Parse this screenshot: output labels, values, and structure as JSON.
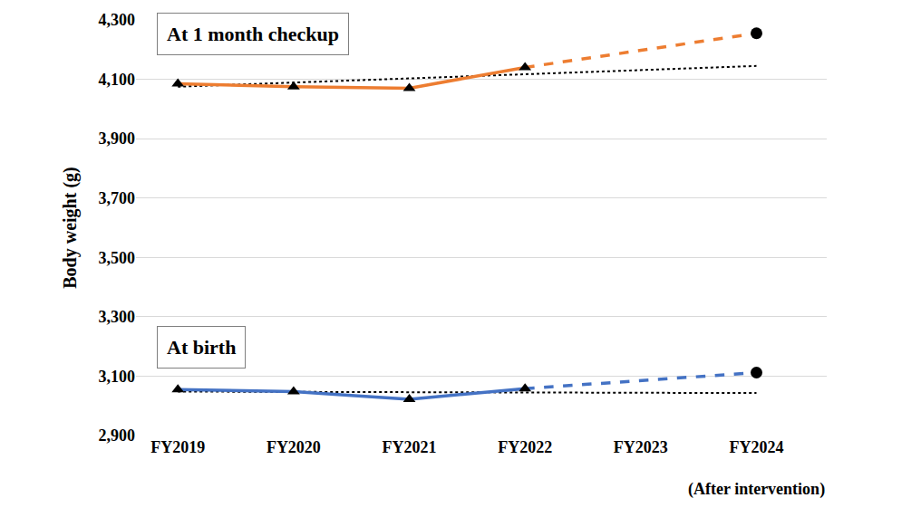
{
  "chart_data": {
    "type": "line",
    "y_label": "Body weight (g)",
    "categories": [
      "FY2019",
      "FY2020",
      "FY2021",
      "FY2022",
      "FY2023",
      "FY2024"
    ],
    "annotations": [
      {
        "text": "At 1 month checkup"
      },
      {
        "text": "At birth"
      },
      {
        "text": "(After intervention)",
        "x": "FY2024"
      }
    ],
    "series": [
      {
        "color": "#000000",
        "line_style": "dotted",
        "marker": "none",
        "values": [
          4075,
          null,
          null,
          null,
          null,
          4145
        ]
      },
      {
        "color": "#000000",
        "line_style": "dotted",
        "marker": "none",
        "values": [
          3048,
          null,
          null,
          null,
          null,
          3043
        ]
      },
      {
        "color": "#ED7D31",
        "line_style": "dashed",
        "marker": "none",
        "values": [
          null,
          null,
          null,
          4140,
          null,
          4255
        ]
      },
      {
        "color": "#4472C4",
        "line_style": "dashed",
        "marker": "none",
        "values": [
          null,
          null,
          null,
          3058,
          null,
          3112
        ]
      },
      {
        "color": "#ED7D31",
        "line_style": "solid",
        "marker": "triangle",
        "values": [
          4085,
          4075,
          4070,
          4140,
          null,
          null
        ]
      },
      {
        "color": "#4472C4",
        "line_style": "solid",
        "marker": "triangle",
        "values": [
          3055,
          3048,
          3022,
          3058,
          null,
          null
        ]
      },
      {
        "type": "scatter",
        "color": "#000000",
        "marker": "circle",
        "values": [
          null,
          null,
          null,
          null,
          null,
          4255
        ]
      },
      {
        "type": "scatter",
        "color": "#000000",
        "marker": "circle",
        "values": [
          null,
          null,
          null,
          null,
          null,
          3112
        ]
      }
    ],
    "ylim": [
      2900,
      4300
    ],
    "yticks": [
      {
        "value": 2900,
        "label": "2,900"
      },
      {
        "value": 3100,
        "label": "3,100"
      },
      {
        "value": 3300,
        "label": "3,300"
      },
      {
        "value": 3500,
        "label": "3,500"
      },
      {
        "value": 3700,
        "label": "3,700"
      },
      {
        "value": 3900,
        "label": "3,900"
      },
      {
        "value": 4100,
        "label": "4,100"
      },
      {
        "value": 4300,
        "label": "4,300"
      }
    ],
    "grid": true
  }
}
